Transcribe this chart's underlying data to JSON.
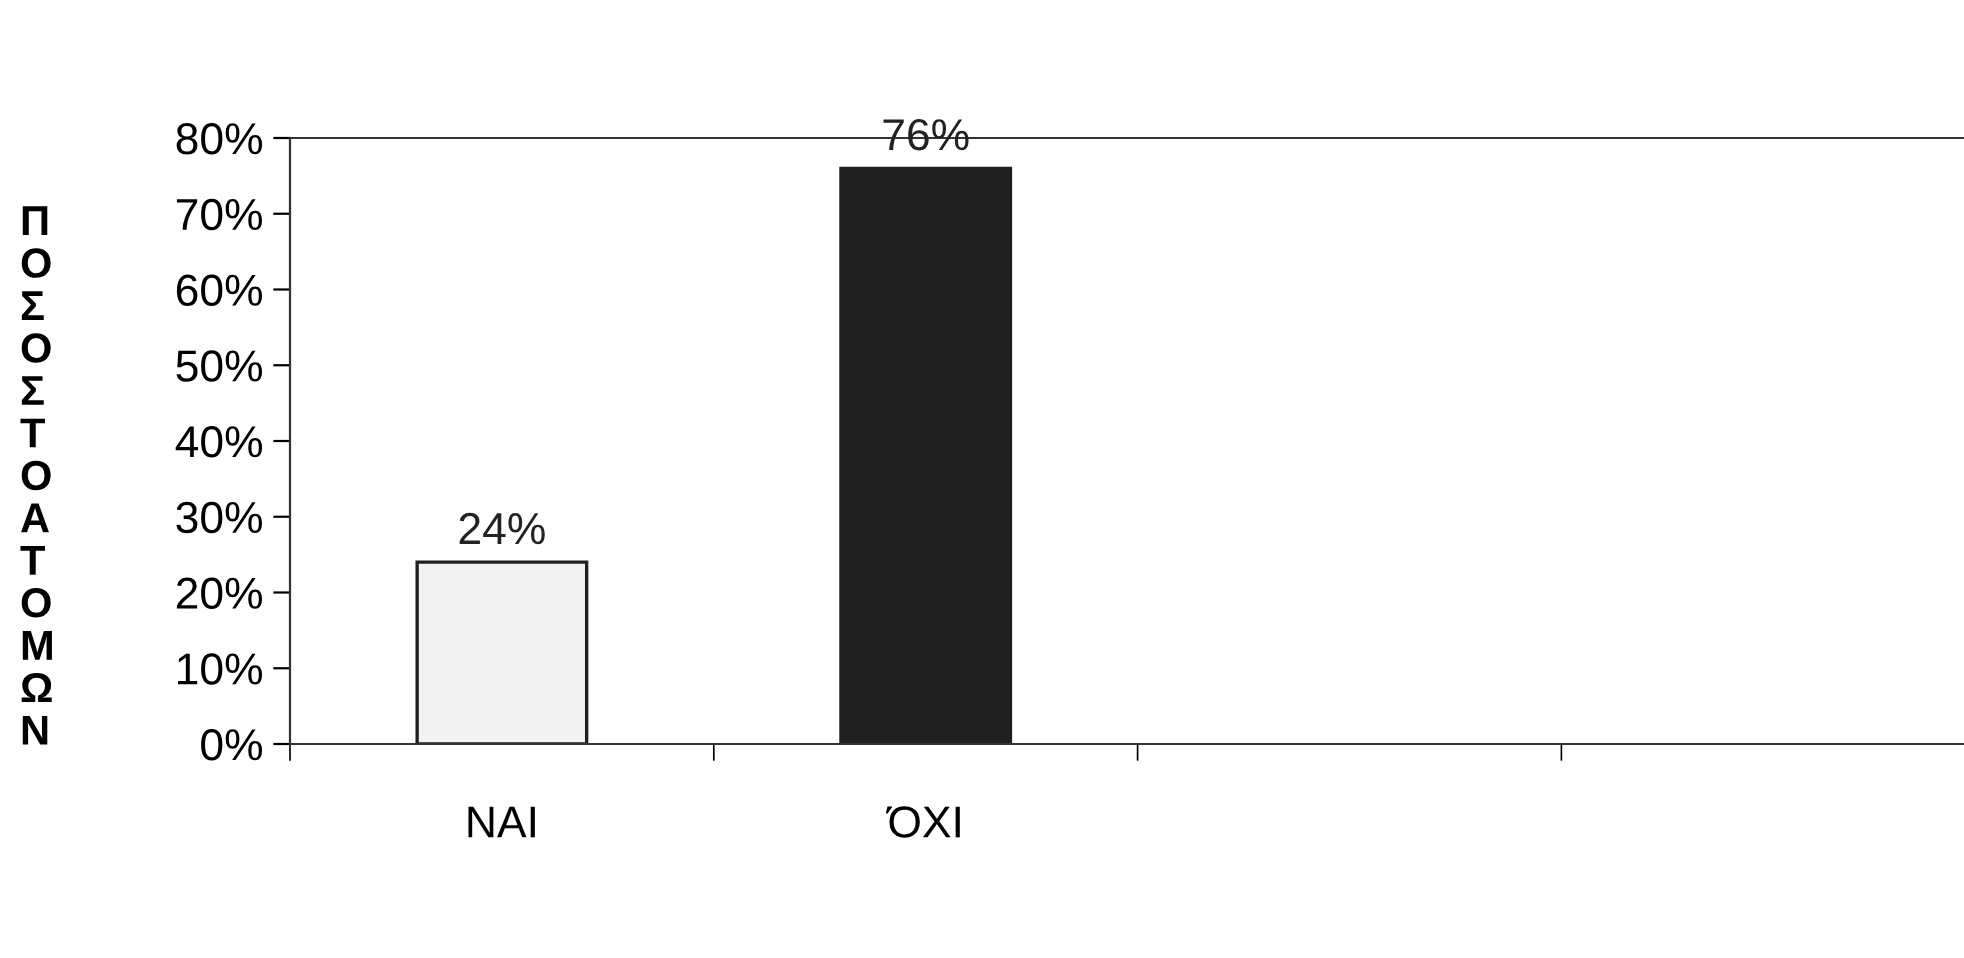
{
  "chart_data": {
    "type": "bar",
    "ylabel": "ΠΟΣΟΣΤΟ ΑΤΟΜΩΝ",
    "categories": [
      "ΝΑΙ",
      "ΌΧΙ",
      null,
      null
    ],
    "values": [
      24,
      76,
      null,
      null
    ],
    "colors": [
      "#f2f2f2",
      "#202020",
      "#f2f2f2",
      "#f2f2f2"
    ],
    "value_labels": [
      "24%",
      "76%",
      null,
      null
    ],
    "ylim": [
      0,
      80
    ],
    "yticks": [
      {
        "value": 0,
        "label": "0%"
      },
      {
        "value": 10,
        "label": "10%"
      },
      {
        "value": 20,
        "label": "20%"
      },
      {
        "value": 30,
        "label": "30%"
      },
      {
        "value": 40,
        "label": "40%"
      },
      {
        "value": 50,
        "label": "50%"
      },
      {
        "value": 60,
        "label": "60%"
      },
      {
        "value": 70,
        "label": "70%"
      },
      {
        "value": 80,
        "label": "80%"
      }
    ],
    "grid": false,
    "legend": false
  }
}
